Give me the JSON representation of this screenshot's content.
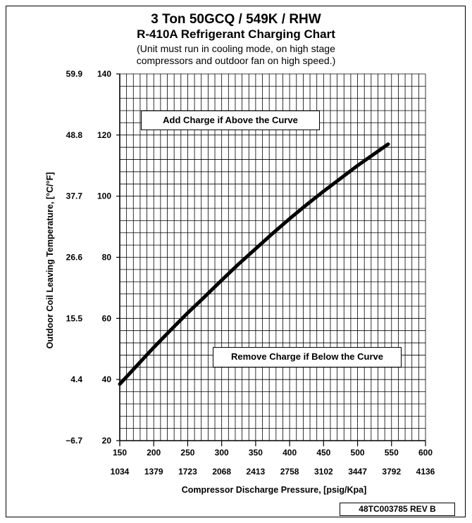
{
  "chart_data": {
    "type": "line",
    "title": "3 Ton 50GCQ / 549K / RHW",
    "subtitle": "R-410A Refrigerant Charging Chart",
    "note_lines": [
      "(Unit must run in cooling mode, on high stage",
      "compressors and outdoor fan on high speed.)"
    ],
    "xlabel": "Compressor Discharge Pressure, [psig/Kpa]",
    "ylabel": "Outdoor Coil Leaving Temperature, [°C/°F]",
    "xlim": [
      150,
      600
    ],
    "ylim": [
      20,
      140
    ],
    "x_ticks_psig": [
      "150",
      "200",
      "250",
      "300",
      "350",
      "400",
      "450",
      "500",
      "550",
      "600"
    ],
    "x_ticks_kpa": [
      "1034",
      "1379",
      "1723",
      "2068",
      "2413",
      "2758",
      "3102",
      "3447",
      "3792",
      "4136"
    ],
    "y_ticks_f": [
      "20",
      "40",
      "60",
      "80",
      "100",
      "120",
      "140"
    ],
    "y_ticks_c": [
      "−6.7",
      "4.4",
      "15.5",
      "26.6",
      "37.7",
      "48.8",
      "59.9"
    ],
    "grid": true,
    "series": [
      {
        "x": [
          150,
          175,
          200,
          225,
          250,
          275,
          300,
          325,
          350,
          375,
          400,
          425,
          450,
          475,
          500,
          525,
          545
        ],
        "y": [
          38.5,
          44.5,
          50.5,
          56.2,
          61.8,
          67.1,
          72.5,
          77.8,
          82.8,
          87.8,
          92.6,
          97.2,
          101.6,
          105.8,
          110,
          113.9,
          117
        ],
        "color": "#000000"
      }
    ],
    "annotations": [
      "Add Charge if Above the Curve",
      "Remove Charge if Below the Curve"
    ]
  },
  "doc_id": "48TC003785   REV B"
}
